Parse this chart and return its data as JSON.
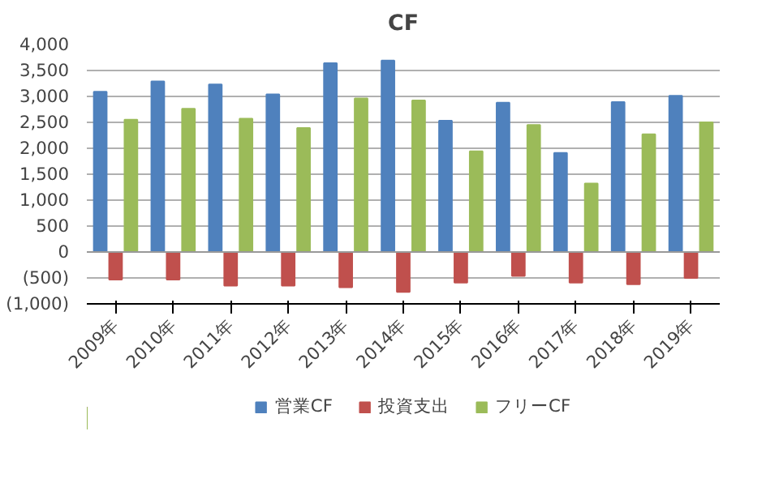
{
  "chart_data": {
    "type": "bar",
    "title": "CF",
    "categories": [
      "2009年",
      "2010年",
      "2011年",
      "2012年",
      "2013年",
      "2014年",
      "2015年",
      "2016年",
      "2017年",
      "2018年",
      "2019年"
    ],
    "series": [
      {
        "name": "営業CF",
        "color": "#4f81bd",
        "values": [
          3090,
          3290,
          3230,
          3040,
          3640,
          3690,
          2530,
          2880,
          1910,
          2890,
          3010
        ]
      },
      {
        "name": "投資支出",
        "color": "#c0504d",
        "values": [
          -530,
          -530,
          -650,
          -650,
          -680,
          -770,
          -590,
          -460,
          -590,
          -620,
          -500
        ]
      },
      {
        "name": "フリーCF",
        "color": "#9bbb59",
        "values": [
          2550,
          2760,
          2570,
          2390,
          2960,
          2920,
          1940,
          2450,
          1320,
          2270,
          2500
        ]
      }
    ],
    "ylim": [
      -1000,
      4000
    ],
    "yticks": [
      {
        "value": -1000,
        "label": "(1,000)"
      },
      {
        "value": -500,
        "label": "(500)"
      },
      0,
      {
        "value": 500,
        "label": "500"
      },
      {
        "value": 1000,
        "label": "1,000"
      },
      {
        "value": 1500,
        "label": "1,500"
      },
      {
        "value": 2000,
        "label": "2,000"
      },
      {
        "value": 2500,
        "label": "2,500"
      },
      {
        "value": 3000,
        "label": "3,000"
      },
      {
        "value": 3500,
        "label": "3,500"
      },
      {
        "value": 4000,
        "label": "4,000"
      }
    ],
    "grid": "y",
    "legend": "bottom"
  }
}
